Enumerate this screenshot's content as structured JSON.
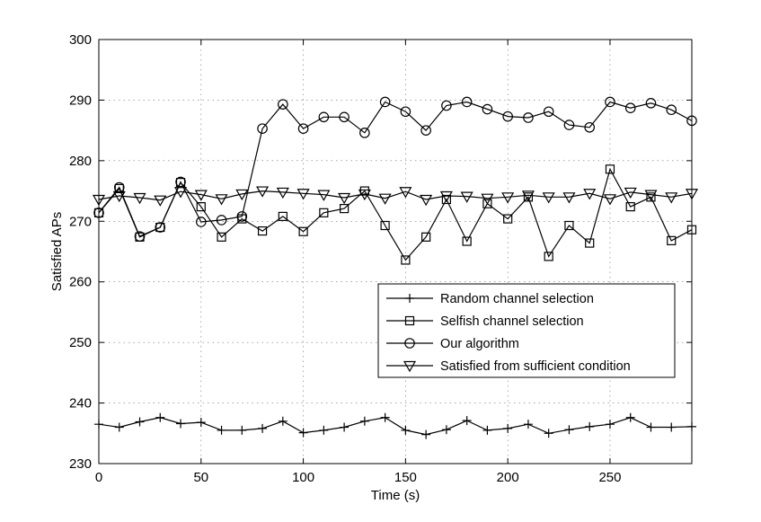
{
  "chart_data": {
    "type": "line",
    "title": "",
    "xlabel": "Time (s)",
    "ylabel": "Satisfied APs",
    "xlim": [
      0,
      290
    ],
    "ylim": [
      230,
      300
    ],
    "xticks": [
      0,
      50,
      100,
      150,
      200,
      250
    ],
    "yticks": [
      230,
      240,
      250,
      260,
      270,
      280,
      290,
      300
    ],
    "grid": true,
    "legend_position": "center-right",
    "x": [
      0,
      10,
      20,
      30,
      40,
      50,
      60,
      70,
      80,
      90,
      100,
      110,
      120,
      130,
      140,
      150,
      160,
      170,
      180,
      190,
      200,
      210,
      220,
      230,
      240,
      250,
      260,
      270,
      280,
      290
    ],
    "series": [
      {
        "name": "Random channel selection",
        "marker": "plus",
        "values": [
          236.5,
          236.0,
          236.9,
          237.6,
          236.6,
          236.8,
          235.5,
          235.5,
          235.8,
          237.0,
          235.1,
          235.5,
          236.0,
          237.0,
          237.6,
          235.5,
          234.8,
          235.6,
          237.1,
          235.5,
          235.8,
          236.5,
          235.0,
          235.6,
          236.1,
          236.5,
          237.6,
          236.0,
          236.0,
          236.1
        ]
      },
      {
        "name": "Selfish channel selection",
        "marker": "square",
        "values": [
          271.4,
          275.4,
          267.4,
          269.0,
          276.4,
          272.4,
          267.4,
          270.4,
          268.4,
          270.8,
          268.3,
          271.4,
          272.1,
          275.0,
          269.3,
          263.6,
          267.4,
          273.6,
          266.7,
          272.9,
          270.4,
          274.0,
          264.2,
          269.3,
          266.4,
          278.6,
          272.4,
          274.0,
          266.8,
          268.6
        ]
      },
      {
        "name": "Our algorithm",
        "marker": "circle",
        "values": [
          271.4,
          275.6,
          267.5,
          269.0,
          276.5,
          269.9,
          270.2,
          270.8,
          285.3,
          289.3,
          285.3,
          287.2,
          287.2,
          284.6,
          289.7,
          288.1,
          285.0,
          289.1,
          289.7,
          288.5,
          287.3,
          287.1,
          288.1,
          285.9,
          285.5,
          289.7,
          288.7,
          289.5,
          288.4,
          286.6
        ]
      },
      {
        "name": "Satisfied from sufficient condition",
        "marker": "triangle-down",
        "values": [
          273.6,
          274.2,
          273.9,
          273.5,
          274.9,
          274.4,
          273.7,
          274.5,
          275.0,
          274.8,
          274.6,
          274.4,
          273.9,
          274.5,
          273.8,
          274.9,
          273.6,
          274.2,
          274.1,
          273.8,
          274.0,
          274.3,
          274.0,
          274.0,
          274.6,
          273.7,
          274.8,
          274.4,
          274.0,
          274.6
        ]
      }
    ]
  }
}
